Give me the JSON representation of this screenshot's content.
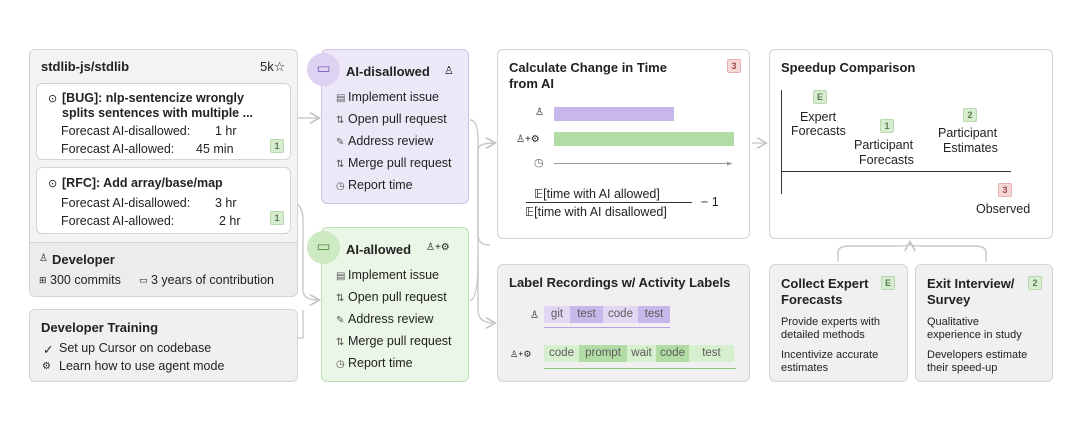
{
  "repo": {
    "name": "stdlib-js/stdlib",
    "stars": "5k",
    "issues": [
      {
        "title_line1": "[BUG]: nlp-sentencize wrongly",
        "title_line2": "splits sentences with multiple ...",
        "disallowed_label": "Forecast AI-disallowed:",
        "disallowed_value": "1 hr",
        "allowed_label": "Forecast AI-allowed:",
        "allowed_value": "45 min",
        "badge": "1"
      },
      {
        "title_line1": "[RFC]: Add array/base/map",
        "disallowed_label": "Forecast AI-disallowed:",
        "disallowed_value": "3 hr",
        "allowed_label": "Forecast AI-allowed:",
        "allowed_value": "2 hr",
        "badge": "1"
      }
    ],
    "developer": {
      "title": "Developer",
      "commits": "300 commits",
      "years": "3 years of contribution"
    }
  },
  "training": {
    "title": "Developer Training",
    "items": [
      "Set up Cursor on codebase",
      "Learn how to use agent mode"
    ]
  },
  "ai_disallowed": {
    "title": "AI-disallowed",
    "steps": [
      "Implement issue",
      "Open pull request",
      "Address review",
      "Merge pull request",
      "Report time"
    ]
  },
  "ai_allowed": {
    "title": "AI-allowed",
    "steps": [
      "Implement issue",
      "Open pull request",
      "Address review",
      "Merge pull request",
      "Report time"
    ]
  },
  "change": {
    "title_line1": "Calculate Change in Time",
    "title_line2": "from AI",
    "badge": "3",
    "numerator": "𝔼[time with AI allowed]",
    "denominator": "𝔼[time with AI disallowed]",
    "minus_one": "− 1"
  },
  "recordings": {
    "title": "Label Recordings w/ Activity Labels",
    "human_labels": [
      "git",
      "test",
      "code",
      "test"
    ],
    "ai_labels": [
      "code",
      "prompt",
      "wait",
      "code",
      "test"
    ]
  },
  "speedup": {
    "title": "Speedup Comparison",
    "expert_badge": "E",
    "expert_line1": "Expert",
    "expert_line2": "Forecasts",
    "participant_forecast_badge": "1",
    "participant_forecast_line1": "Participant",
    "participant_forecast_line2": "Forecasts",
    "participant_estimate_badge": "2",
    "participant_estimate_line1": "Participant",
    "participant_estimate_line2": "Estimates",
    "observed_badge": "3",
    "observed": "Observed"
  },
  "expert_forecasts": {
    "title_line1": "Collect Expert",
    "title_line2": "Forecasts",
    "badge": "E",
    "text1_line1": "Provide experts with",
    "text1_line2": "detailed methods",
    "text2_line1": "Incentivize accurate",
    "text2_line2": "estimates"
  },
  "exit_interview": {
    "title_line1": "Exit Interview/",
    "title_line2": "Survey",
    "badge": "2",
    "text1_line1": "Qualitative",
    "text1_line2": "experience in study",
    "text2_line1": "Developers estimate",
    "text2_line2": "their speed-up"
  },
  "colors": {
    "purple": "#c8b7ea",
    "green": "#b1dda4",
    "badge_green": "#d7ecd0",
    "badge_red": "#f6d7d7"
  }
}
